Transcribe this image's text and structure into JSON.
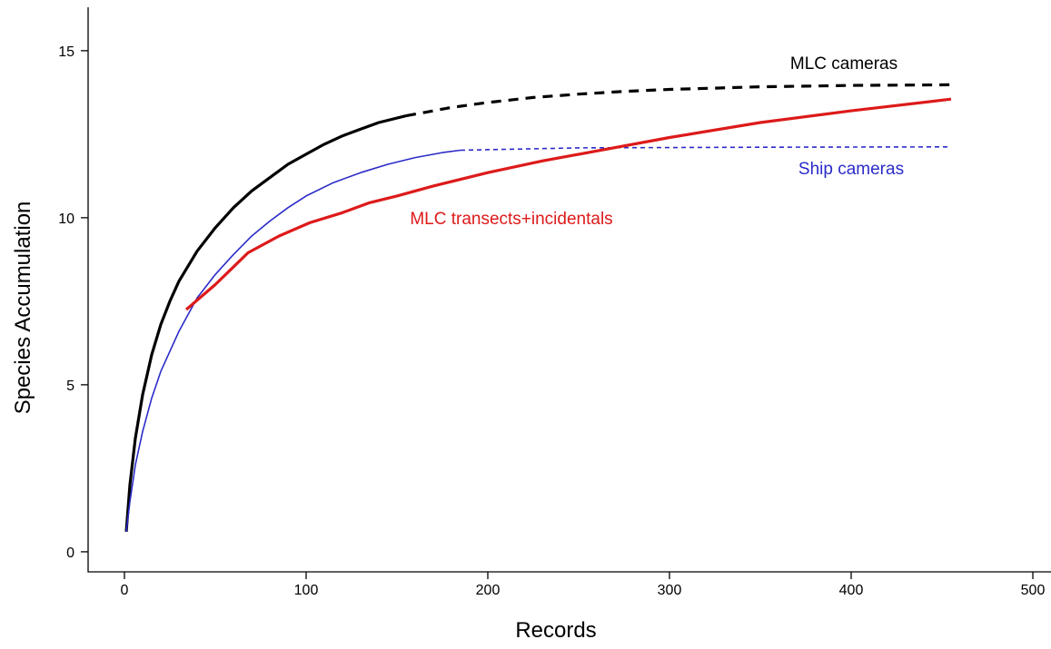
{
  "chart_data": {
    "type": "line",
    "xlabel": "Records",
    "ylabel": "Species Accumulation",
    "xlim": [
      -20,
      510
    ],
    "ylim": [
      -0.6,
      16.3
    ],
    "xticks": [
      0,
      100,
      200,
      300,
      400,
      500
    ],
    "yticks": [
      0,
      5,
      10,
      15
    ],
    "grid": false,
    "legend": "none",
    "series": [
      {
        "name": "MLC cameras",
        "color": "#000000",
        "parts": [
          {
            "style": "solid",
            "x": [
              1,
              3,
              6,
              10,
              15,
              20,
              25,
              30,
              40,
              50,
              60,
              70,
              80,
              90,
              100,
              110,
              120,
              130,
              140,
              155
            ],
            "y": [
              0.6,
              2.0,
              3.4,
              4.7,
              5.9,
              6.8,
              7.5,
              8.1,
              9.0,
              9.7,
              10.3,
              10.8,
              11.2,
              11.6,
              11.9,
              12.2,
              12.45,
              12.65,
              12.85,
              13.05
            ]
          },
          {
            "style": "dashed",
            "x": [
              155,
              180,
              200,
              225,
              250,
              275,
              300,
              325,
              350,
              375,
              400,
              425,
              455
            ],
            "y": [
              13.05,
              13.3,
              13.45,
              13.6,
              13.7,
              13.78,
              13.84,
              13.88,
              13.92,
              13.94,
              13.96,
              13.97,
              13.98
            ]
          }
        ]
      },
      {
        "name": "Ship cameras",
        "color": "#2b2bc8",
        "parts": [
          {
            "style": "solid",
            "x": [
              1,
              3,
              6,
              10,
              15,
              20,
              25,
              30,
              40,
              50,
              60,
              70,
              80,
              90,
              100,
              115,
              130,
              145,
              160,
              175,
              185
            ],
            "y": [
              0.6,
              1.5,
              2.6,
              3.6,
              4.6,
              5.4,
              6.0,
              6.6,
              7.6,
              8.3,
              8.9,
              9.45,
              9.9,
              10.3,
              10.65,
              11.05,
              11.35,
              11.6,
              11.8,
              11.95,
              12.02
            ]
          },
          {
            "style": "dashed",
            "x": [
              185,
              250,
              350,
              455
            ],
            "y": [
              12.02,
              12.09,
              12.11,
              12.12
            ]
          }
        ]
      },
      {
        "name": "MLC transects+incidentals",
        "color": "#dd1a1a",
        "parts": [
          {
            "style": "solid",
            "x": [
              34,
              50,
              68,
              85,
              102,
              120,
              135,
              150,
              170,
              200,
              230,
              260,
              300,
              350,
              400,
              455
            ],
            "y": [
              7.25,
              8.0,
              8.95,
              9.45,
              9.85,
              10.15,
              10.45,
              10.65,
              10.95,
              11.35,
              11.7,
              12.0,
              12.4,
              12.85,
              13.2,
              13.55
            ]
          }
        ]
      }
    ],
    "annotations": [
      {
        "text": "MLC cameras",
        "series": 0,
        "x": 396,
        "y": 14.45
      },
      {
        "text": "Ship cameras",
        "series": 1,
        "x": 400,
        "y": 11.3
      },
      {
        "text": "MLC transects+incidentals",
        "series": 2,
        "x": 213,
        "y": 9.8
      }
    ]
  }
}
